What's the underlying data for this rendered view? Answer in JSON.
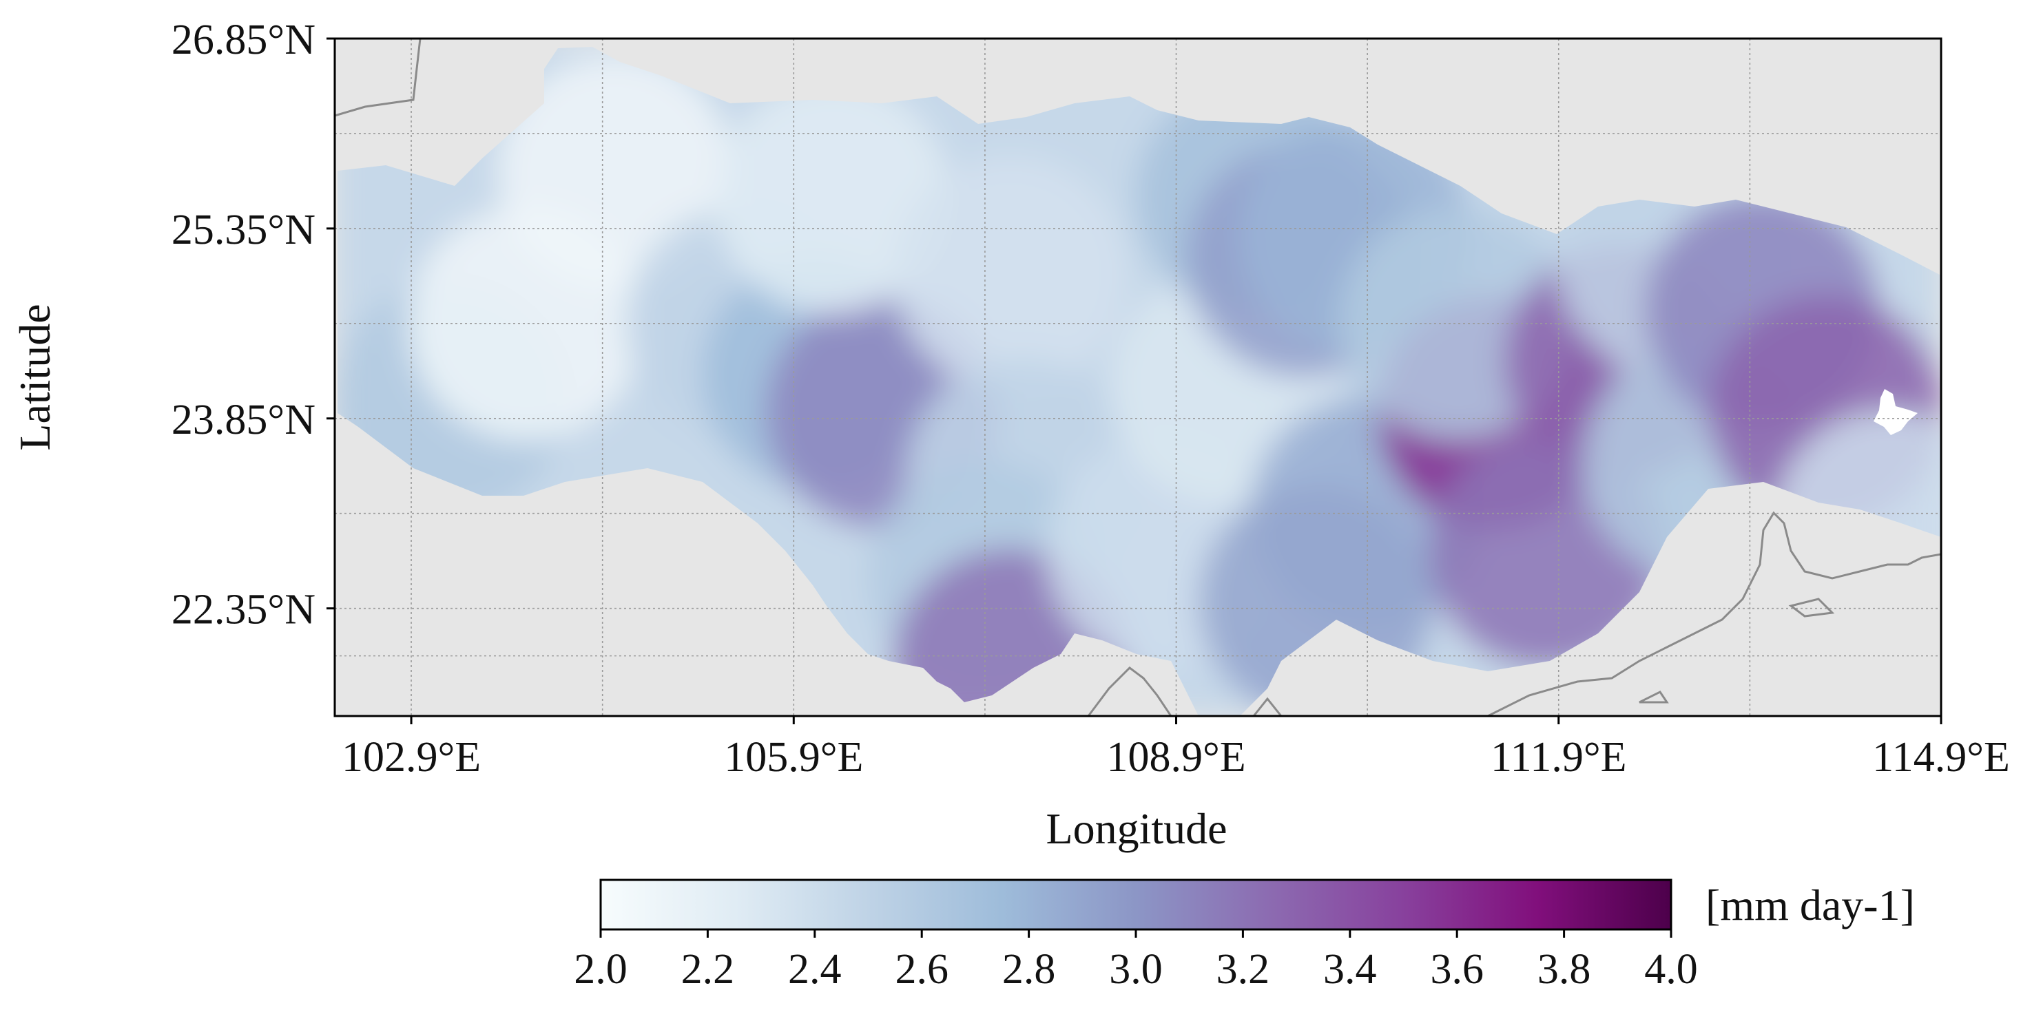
{
  "figure": {
    "axes": {
      "xlabel": "Longitude",
      "ylabel": "Latitude",
      "x_ticks": [
        "102.9°E",
        "105.9°E",
        "108.9°E",
        "111.9°E",
        "114.9°E"
      ],
      "y_ticks": [
        "26.85°N",
        "25.35°N",
        "23.85°N",
        "22.35°N"
      ]
    },
    "colorbar": {
      "unit": "[mm day-1]",
      "ticks": [
        "2.0",
        "2.2",
        "2.4",
        "2.6",
        "2.8",
        "3.0",
        "3.2",
        "3.4",
        "3.6",
        "3.8",
        "4.0"
      ],
      "range": [
        2.0,
        4.0
      ],
      "colormap": "BuPu",
      "stops": [
        "#f7fcfd",
        "#e0ecf4",
        "#bfd3e6",
        "#9ebcda",
        "#8c96c6",
        "#8c6bb1",
        "#88419d",
        "#810f7c",
        "#4d004b"
      ]
    },
    "colors": {
      "background": "#e6e6e6",
      "coastline": "#8a8a8a",
      "grid": "#9a9a9a",
      "frame": "#000000"
    }
  },
  "chart_data": {
    "type": "heatmap",
    "title": "",
    "xlabel": "Longitude",
    "ylabel": "Latitude",
    "xlim": [
      102.3,
      114.9
    ],
    "ylim": [
      21.5,
      26.85
    ],
    "x_tick_values": [
      102.9,
      105.9,
      108.9,
      111.9,
      114.9
    ],
    "y_tick_values": [
      26.85,
      25.35,
      23.85,
      22.35
    ],
    "colorbar_label": "[mm day-1]",
    "vmin": 2.0,
    "vmax": 4.0,
    "grid": true,
    "region_values": [
      {
        "lon": 103.2,
        "lat": 24.0,
        "value": 2.6
      },
      {
        "lon": 103.8,
        "lat": 24.6,
        "value": 2.1
      },
      {
        "lon": 104.5,
        "lat": 25.8,
        "value": 2.1
      },
      {
        "lon": 105.5,
        "lat": 24.6,
        "value": 2.5
      },
      {
        "lon": 106.1,
        "lat": 24.2,
        "value": 2.75
      },
      {
        "lon": 106.6,
        "lat": 23.9,
        "value": 3.1
      },
      {
        "lon": 106.2,
        "lat": 25.6,
        "value": 2.25
      },
      {
        "lon": 107.6,
        "lat": 25.0,
        "value": 2.35
      },
      {
        "lon": 107.7,
        "lat": 23.4,
        "value": 2.5
      },
      {
        "lon": 107.4,
        "lat": 22.6,
        "value": 2.6
      },
      {
        "lon": 107.6,
        "lat": 21.9,
        "value": 3.2
      },
      {
        "lon": 108.8,
        "lat": 22.8,
        "value": 2.4
      },
      {
        "lon": 109.3,
        "lat": 24.1,
        "value": 2.3
      },
      {
        "lon": 109.5,
        "lat": 25.6,
        "value": 2.7
      },
      {
        "lon": 109.9,
        "lat": 25.1,
        "value": 2.95
      },
      {
        "lon": 110.3,
        "lat": 25.3,
        "value": 2.8
      },
      {
        "lon": 110.4,
        "lat": 23.1,
        "value": 2.85
      },
      {
        "lon": 110.0,
        "lat": 22.4,
        "value": 2.9
      },
      {
        "lon": 111.4,
        "lat": 23.9,
        "value": 3.6
      },
      {
        "lon": 111.1,
        "lat": 24.6,
        "value": 2.6
      },
      {
        "lon": 111.8,
        "lat": 22.8,
        "value": 3.2
      },
      {
        "lon": 112.4,
        "lat": 24.3,
        "value": 3.3
      },
      {
        "lon": 112.8,
        "lat": 25.1,
        "value": 2.5
      },
      {
        "lon": 113.0,
        "lat": 23.5,
        "value": 2.6
      },
      {
        "lon": 113.5,
        "lat": 24.7,
        "value": 3.1
      },
      {
        "lon": 114.0,
        "lat": 23.9,
        "value": 3.3
      },
      {
        "lon": 114.5,
        "lat": 23.0,
        "value": 2.4
      }
    ]
  }
}
